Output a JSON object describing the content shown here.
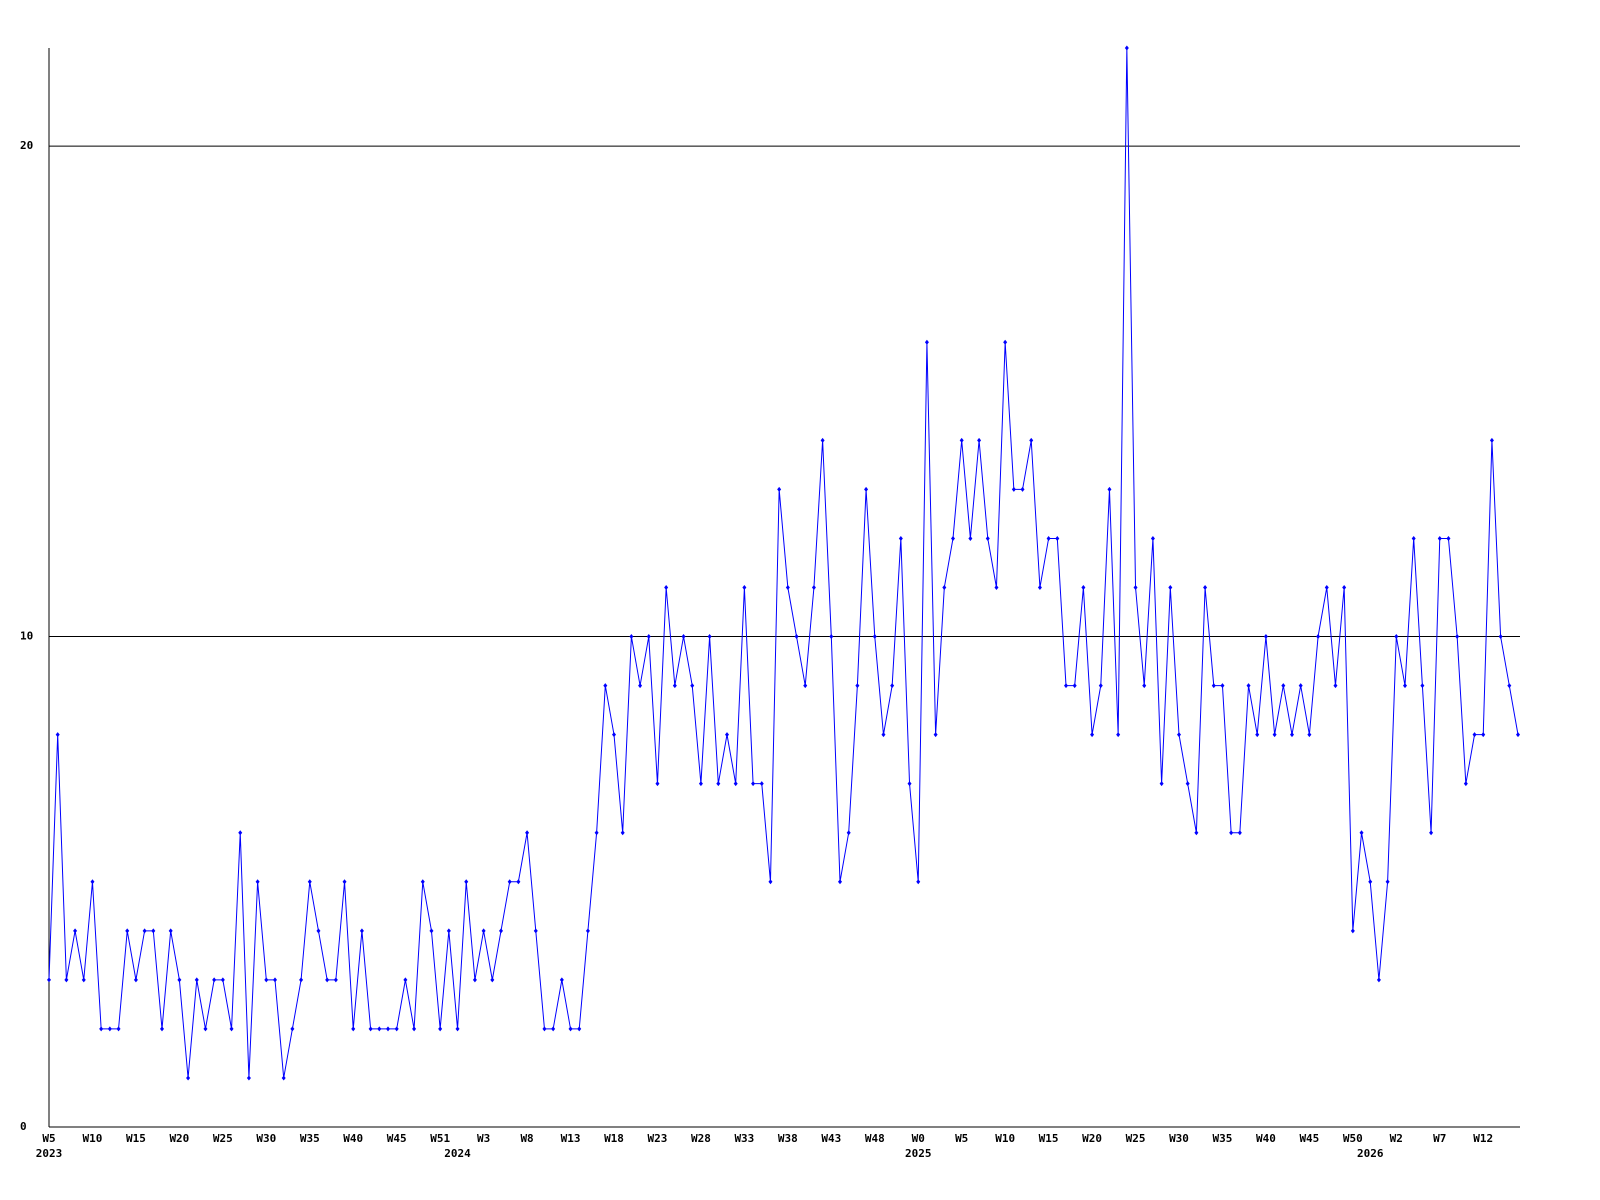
{
  "chart_data": {
    "type": "line",
    "categories": [
      "W5",
      null,
      null,
      null,
      null,
      "W10",
      null,
      null,
      null,
      null,
      "W15",
      null,
      null,
      null,
      null,
      "W20",
      null,
      null,
      null,
      null,
      "W25",
      null,
      null,
      null,
      null,
      "W30",
      null,
      null,
      null,
      null,
      "W35",
      null,
      null,
      null,
      null,
      "W40",
      null,
      null,
      null,
      null,
      "W45",
      null,
      null,
      null,
      null,
      "W51",
      null,
      null,
      null,
      null,
      "W3",
      null,
      null,
      null,
      null,
      "W8",
      null,
      null,
      null,
      null,
      "W13",
      null,
      null,
      null,
      null,
      "W18",
      null,
      null,
      null,
      null,
      "W23",
      null,
      null,
      null,
      null,
      "W28",
      null,
      null,
      null,
      null,
      "W33",
      null,
      null,
      null,
      null,
      "W38",
      null,
      null,
      null,
      null,
      "W43",
      null,
      null,
      null,
      null,
      "W48",
      null,
      null,
      null,
      null,
      "W0",
      null,
      null,
      null,
      null,
      "W5",
      null,
      null,
      null,
      null,
      "W10",
      null,
      null,
      null,
      null,
      "W15",
      null,
      null,
      null,
      null,
      "W20",
      null,
      null,
      null,
      null,
      "W25",
      null,
      null,
      null,
      null,
      "W30",
      null,
      null,
      null,
      null,
      "W35",
      null,
      null,
      null,
      null,
      "W40",
      null,
      null,
      null,
      null,
      "W45",
      null,
      null,
      null,
      null,
      "W50",
      null,
      null,
      null,
      null,
      "W2",
      null,
      null,
      null,
      null,
      "W7",
      null,
      null,
      null,
      null,
      "W12",
      null,
      null,
      null,
      null
    ],
    "years": [
      "2023",
      null,
      null,
      null,
      null,
      null,
      null,
      null,
      null,
      null,
      null,
      null,
      null,
      null,
      null,
      null,
      null,
      null,
      null,
      null,
      null,
      null,
      null,
      null,
      null,
      null,
      null,
      null,
      null,
      null,
      null,
      null,
      null,
      null,
      null,
      null,
      null,
      null,
      null,
      null,
      null,
      null,
      null,
      null,
      null,
      null,
      null,
      "2024",
      null,
      null,
      null,
      null,
      null,
      null,
      null,
      null,
      null,
      null,
      null,
      null,
      null,
      null,
      null,
      null,
      null,
      null,
      null,
      null,
      null,
      null,
      null,
      null,
      null,
      null,
      null,
      null,
      null,
      null,
      null,
      null,
      null,
      null,
      null,
      null,
      null,
      null,
      null,
      null,
      null,
      null,
      null,
      null,
      null,
      null,
      null,
      null,
      null,
      null,
      null,
      null,
      "2025",
      null,
      null,
      null,
      null,
      null,
      null,
      null,
      null,
      null,
      null,
      null,
      null,
      null,
      null,
      null,
      null,
      null,
      null,
      null,
      null,
      null,
      null,
      null,
      null,
      null,
      null,
      null,
      null,
      null,
      null,
      null,
      null,
      null,
      null,
      null,
      null,
      null,
      null,
      null,
      null,
      null,
      null,
      null,
      null,
      null,
      null,
      null,
      null,
      null,
      null,
      null,
      "2026",
      null,
      null,
      null,
      null,
      null,
      null,
      null,
      null,
      null,
      null,
      null,
      null,
      null,
      null,
      null
    ],
    "series": [
      {
        "color": "#0000ff",
        "values": [
          3,
          8,
          3,
          4,
          3,
          5,
          2,
          2,
          2,
          4,
          3,
          4,
          4,
          2,
          4,
          3,
          1,
          3,
          2,
          3,
          3,
          2,
          6,
          1,
          5,
          3,
          3,
          1,
          2,
          3,
          5,
          4,
          3,
          3,
          5,
          2,
          4,
          2,
          2,
          2,
          2,
          3,
          2,
          5,
          4,
          2,
          4,
          2,
          5,
          3,
          4,
          3,
          4,
          5,
          5,
          6,
          4,
          2,
          2,
          3,
          2,
          2,
          4,
          6,
          9,
          8,
          6,
          10,
          9,
          10,
          7,
          11,
          9,
          10,
          9,
          7,
          10,
          7,
          8,
          7,
          11,
          7,
          7,
          5,
          13,
          11,
          10,
          9,
          11,
          14,
          10,
          5,
          6,
          9,
          13,
          10,
          8,
          9,
          12,
          7,
          5,
          16,
          8,
          11,
          12,
          14,
          12,
          14,
          12,
          11,
          16,
          13,
          13,
          14,
          11,
          12,
          12,
          9,
          9,
          11,
          8,
          9,
          13,
          8,
          22,
          11,
          9,
          12,
          7,
          11,
          8,
          7,
          6,
          11,
          9,
          9,
          6,
          6,
          9,
          8,
          10,
          8,
          9,
          8,
          9,
          8,
          10,
          11,
          9,
          11,
          4,
          6,
          5,
          3,
          5,
          10,
          9,
          12,
          9,
          6,
          12,
          12,
          10,
          7,
          8,
          8,
          14,
          10,
          9,
          8
        ]
      }
    ],
    "ylim": [
      0,
      22
    ],
    "yticks": [
      0,
      10,
      20
    ],
    "grid": true
  }
}
